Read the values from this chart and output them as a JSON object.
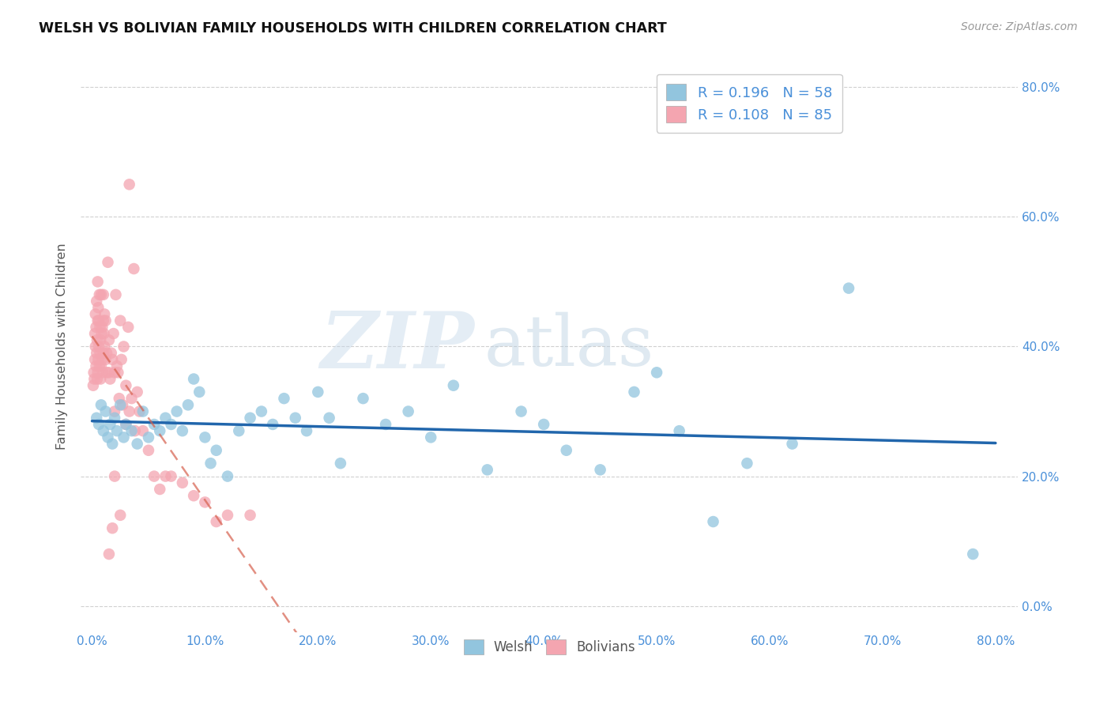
{
  "title": "WELSH VS BOLIVIAN FAMILY HOUSEHOLDS WITH CHILDREN CORRELATION CHART",
  "source": "Source: ZipAtlas.com",
  "ylabel": "Family Households with Children",
  "watermark_zip": "ZIP",
  "watermark_atlas": "atlas",
  "welsh_R": "0.196",
  "welsh_N": "58",
  "bolivian_R": "0.108",
  "bolivian_N": "85",
  "welsh_color": "#92c5de",
  "bolivian_color": "#f4a5b0",
  "welsh_line_color": "#2166ac",
  "bolivian_line_color": "#d6604d",
  "background_color": "#ffffff",
  "grid_color": "#d0d0d0",
  "title_color": "#111111",
  "source_color": "#999999",
  "axis_tick_color": "#4a90d9",
  "ylabel_color": "#555555",
  "legend_text_color": "#4a90d9",
  "bottom_legend_color": "#555555",
  "welsh_scatter_x": [
    0.4,
    0.6,
    0.8,
    1.0,
    1.2,
    1.4,
    1.6,
    1.8,
    2.0,
    2.2,
    2.5,
    2.8,
    3.0,
    3.5,
    4.0,
    4.5,
    5.0,
    5.5,
    6.0,
    6.5,
    7.0,
    7.5,
    8.0,
    8.5,
    9.0,
    9.5,
    10.0,
    10.5,
    11.0,
    12.0,
    13.0,
    14.0,
    15.0,
    16.0,
    17.0,
    18.0,
    19.0,
    20.0,
    21.0,
    22.0,
    24.0,
    26.0,
    28.0,
    30.0,
    32.0,
    35.0,
    38.0,
    40.0,
    42.0,
    45.0,
    48.0,
    50.0,
    52.0,
    55.0,
    58.0,
    62.0,
    67.0,
    78.0
  ],
  "welsh_scatter_y": [
    29.0,
    28.0,
    31.0,
    27.0,
    30.0,
    26.0,
    28.0,
    25.0,
    29.0,
    27.0,
    31.0,
    26.0,
    28.0,
    27.0,
    25.0,
    30.0,
    26.0,
    28.0,
    27.0,
    29.0,
    28.0,
    30.0,
    27.0,
    31.0,
    35.0,
    33.0,
    26.0,
    22.0,
    24.0,
    20.0,
    27.0,
    29.0,
    30.0,
    28.0,
    32.0,
    29.0,
    27.0,
    33.0,
    29.0,
    22.0,
    32.0,
    28.0,
    30.0,
    26.0,
    34.0,
    21.0,
    30.0,
    28.0,
    24.0,
    21.0,
    33.0,
    36.0,
    27.0,
    13.0,
    22.0,
    25.0,
    49.0,
    8.0
  ],
  "bolivian_scatter_x": [
    0.1,
    0.15,
    0.2,
    0.25,
    0.25,
    0.3,
    0.3,
    0.35,
    0.35,
    0.4,
    0.4,
    0.45,
    0.45,
    0.5,
    0.5,
    0.5,
    0.55,
    0.55,
    0.6,
    0.6,
    0.65,
    0.65,
    0.7,
    0.7,
    0.75,
    0.75,
    0.8,
    0.8,
    0.85,
    0.9,
    0.9,
    0.95,
    1.0,
    1.0,
    1.0,
    1.05,
    1.1,
    1.1,
    1.2,
    1.2,
    1.3,
    1.3,
    1.4,
    1.5,
    1.5,
    1.6,
    1.7,
    1.8,
    1.9,
    2.0,
    2.0,
    2.1,
    2.2,
    2.3,
    2.4,
    2.5,
    2.6,
    2.7,
    2.8,
    3.0,
    3.0,
    3.2,
    3.3,
    3.5,
    3.7,
    3.8,
    4.0,
    4.2,
    4.5,
    5.0,
    5.5,
    6.0,
    6.5,
    7.0,
    8.0,
    9.0,
    10.0,
    11.0,
    12.0,
    14.0,
    3.3,
    2.5,
    1.8,
    2.0,
    1.5
  ],
  "bolivian_scatter_y": [
    34.0,
    36.0,
    35.0,
    38.0,
    42.0,
    40.0,
    45.0,
    37.0,
    43.0,
    39.0,
    47.0,
    35.0,
    41.0,
    36.0,
    44.0,
    50.0,
    38.0,
    46.0,
    40.0,
    44.0,
    37.0,
    48.0,
    39.0,
    43.0,
    35.0,
    41.0,
    37.0,
    48.0,
    42.0,
    43.0,
    38.0,
    36.0,
    39.0,
    44.0,
    48.0,
    42.0,
    40.0,
    45.0,
    38.0,
    44.0,
    36.0,
    39.0,
    53.0,
    41.0,
    36.0,
    35.0,
    39.0,
    38.0,
    42.0,
    30.0,
    36.0,
    48.0,
    37.0,
    36.0,
    32.0,
    44.0,
    38.0,
    31.0,
    40.0,
    34.0,
    28.0,
    43.0,
    65.0,
    32.0,
    52.0,
    27.0,
    33.0,
    30.0,
    27.0,
    24.0,
    20.0,
    18.0,
    20.0,
    20.0,
    19.0,
    17.0,
    16.0,
    13.0,
    14.0,
    14.0,
    30.0,
    14.0,
    12.0,
    20.0,
    8.0
  ],
  "xlim": [
    -1,
    82
  ],
  "ylim": [
    -4,
    84
  ],
  "x_tick_vals": [
    0,
    10,
    20,
    30,
    40,
    50,
    60,
    70,
    80
  ],
  "x_tick_labels": [
    "0.0%",
    "10.0%",
    "20.0%",
    "30.0%",
    "40.0%",
    "50.0%",
    "60.0%",
    "70.0%",
    "80.0%"
  ],
  "y_tick_vals": [
    0,
    20,
    40,
    60,
    80
  ],
  "y_tick_labels": [
    "0.0%",
    "20.0%",
    "40.0%",
    "60.0%",
    "80.0%"
  ]
}
